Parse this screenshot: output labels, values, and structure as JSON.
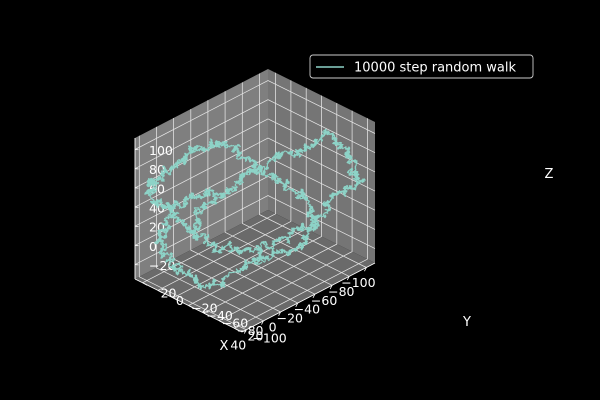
{
  "chart_data": {
    "type": "line3d",
    "title": "",
    "xlabel": "X",
    "ylabel": "Y",
    "zlabel": "Z",
    "xlim": [
      -110,
      45
    ],
    "ylim": [
      -110,
      30
    ],
    "zlim": [
      -35,
      112
    ],
    "xticks": [
      -100,
      -80,
      -60,
      -40,
      -20,
      0,
      20,
      40
    ],
    "yticks": [
      -100,
      -80,
      -60,
      -40,
      -20,
      0,
      20
    ],
    "zticks": [
      -20,
      0,
      20,
      40,
      60,
      80,
      100
    ],
    "grid": true,
    "legend_position": "top-right",
    "series": [
      {
        "name": "10000 step random walk",
        "color": "#8dd3c7",
        "steps": 10000,
        "waypoints": [
          [
            0,
            0,
            0
          ],
          [
            -10,
            8,
            22
          ],
          [
            -25,
            -5,
            35
          ],
          [
            -40,
            -20,
            50
          ],
          [
            -55,
            -35,
            68
          ],
          [
            -70,
            -55,
            80
          ],
          [
            -88,
            -70,
            92
          ],
          [
            -95,
            -90,
            78
          ],
          [
            -100,
            -98,
            55
          ],
          [
            -92,
            -85,
            35
          ],
          [
            -80,
            -72,
            12
          ],
          [
            -65,
            -55,
            -5
          ],
          [
            -48,
            -40,
            -18
          ],
          [
            -30,
            -25,
            -22
          ],
          [
            -12,
            -12,
            -8
          ],
          [
            5,
            0,
            10
          ],
          [
            20,
            10,
            30
          ],
          [
            32,
            18,
            48
          ],
          [
            38,
            24,
            62
          ],
          [
            28,
            15,
            72
          ],
          [
            15,
            5,
            85
          ],
          [
            5,
            -5,
            98
          ],
          [
            -10,
            -20,
            105
          ],
          [
            -22,
            -32,
            90
          ],
          [
            -35,
            -48,
            70
          ],
          [
            -50,
            -65,
            58
          ],
          [
            -62,
            -80,
            40
          ],
          [
            -50,
            -95,
            25
          ],
          [
            -30,
            -100,
            15
          ],
          [
            -10,
            -80,
            5
          ],
          [
            8,
            -60,
            -10
          ],
          [
            22,
            -40,
            -25
          ],
          [
            35,
            -20,
            -15
          ],
          [
            40,
            0,
            0
          ],
          [
            30,
            15,
            15
          ],
          [
            12,
            20,
            25
          ],
          [
            -5,
            10,
            35
          ],
          [
            -15,
            -5,
            45
          ]
        ]
      }
    ]
  }
}
